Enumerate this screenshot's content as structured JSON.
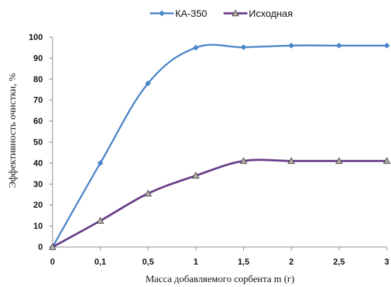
{
  "chart_data": {
    "type": "line",
    "categories": [
      "0",
      "0,1",
      "0,5",
      "1",
      "1,5",
      "2",
      "2,5",
      "3"
    ],
    "xlabel": "Масса добавляемого сорбента m (г)",
    "ylabel": "Эффективность очистки, %",
    "ylim": [
      0,
      100
    ],
    "yticks": [
      0,
      10,
      20,
      30,
      40,
      50,
      60,
      70,
      80,
      90,
      100
    ],
    "grid": false,
    "legend_position": "top",
    "series": [
      {
        "name": "КА-350",
        "color": "#4A86C8",
        "marker": "diamond",
        "values": [
          0,
          40,
          78,
          95,
          95.2,
          96,
          96,
          96
        ]
      },
      {
        "name": "Исходная",
        "color": "#6A3F8A",
        "marker": "triangle",
        "values": [
          0,
          12.5,
          25.5,
          34,
          41,
          41,
          41,
          41
        ]
      }
    ]
  }
}
